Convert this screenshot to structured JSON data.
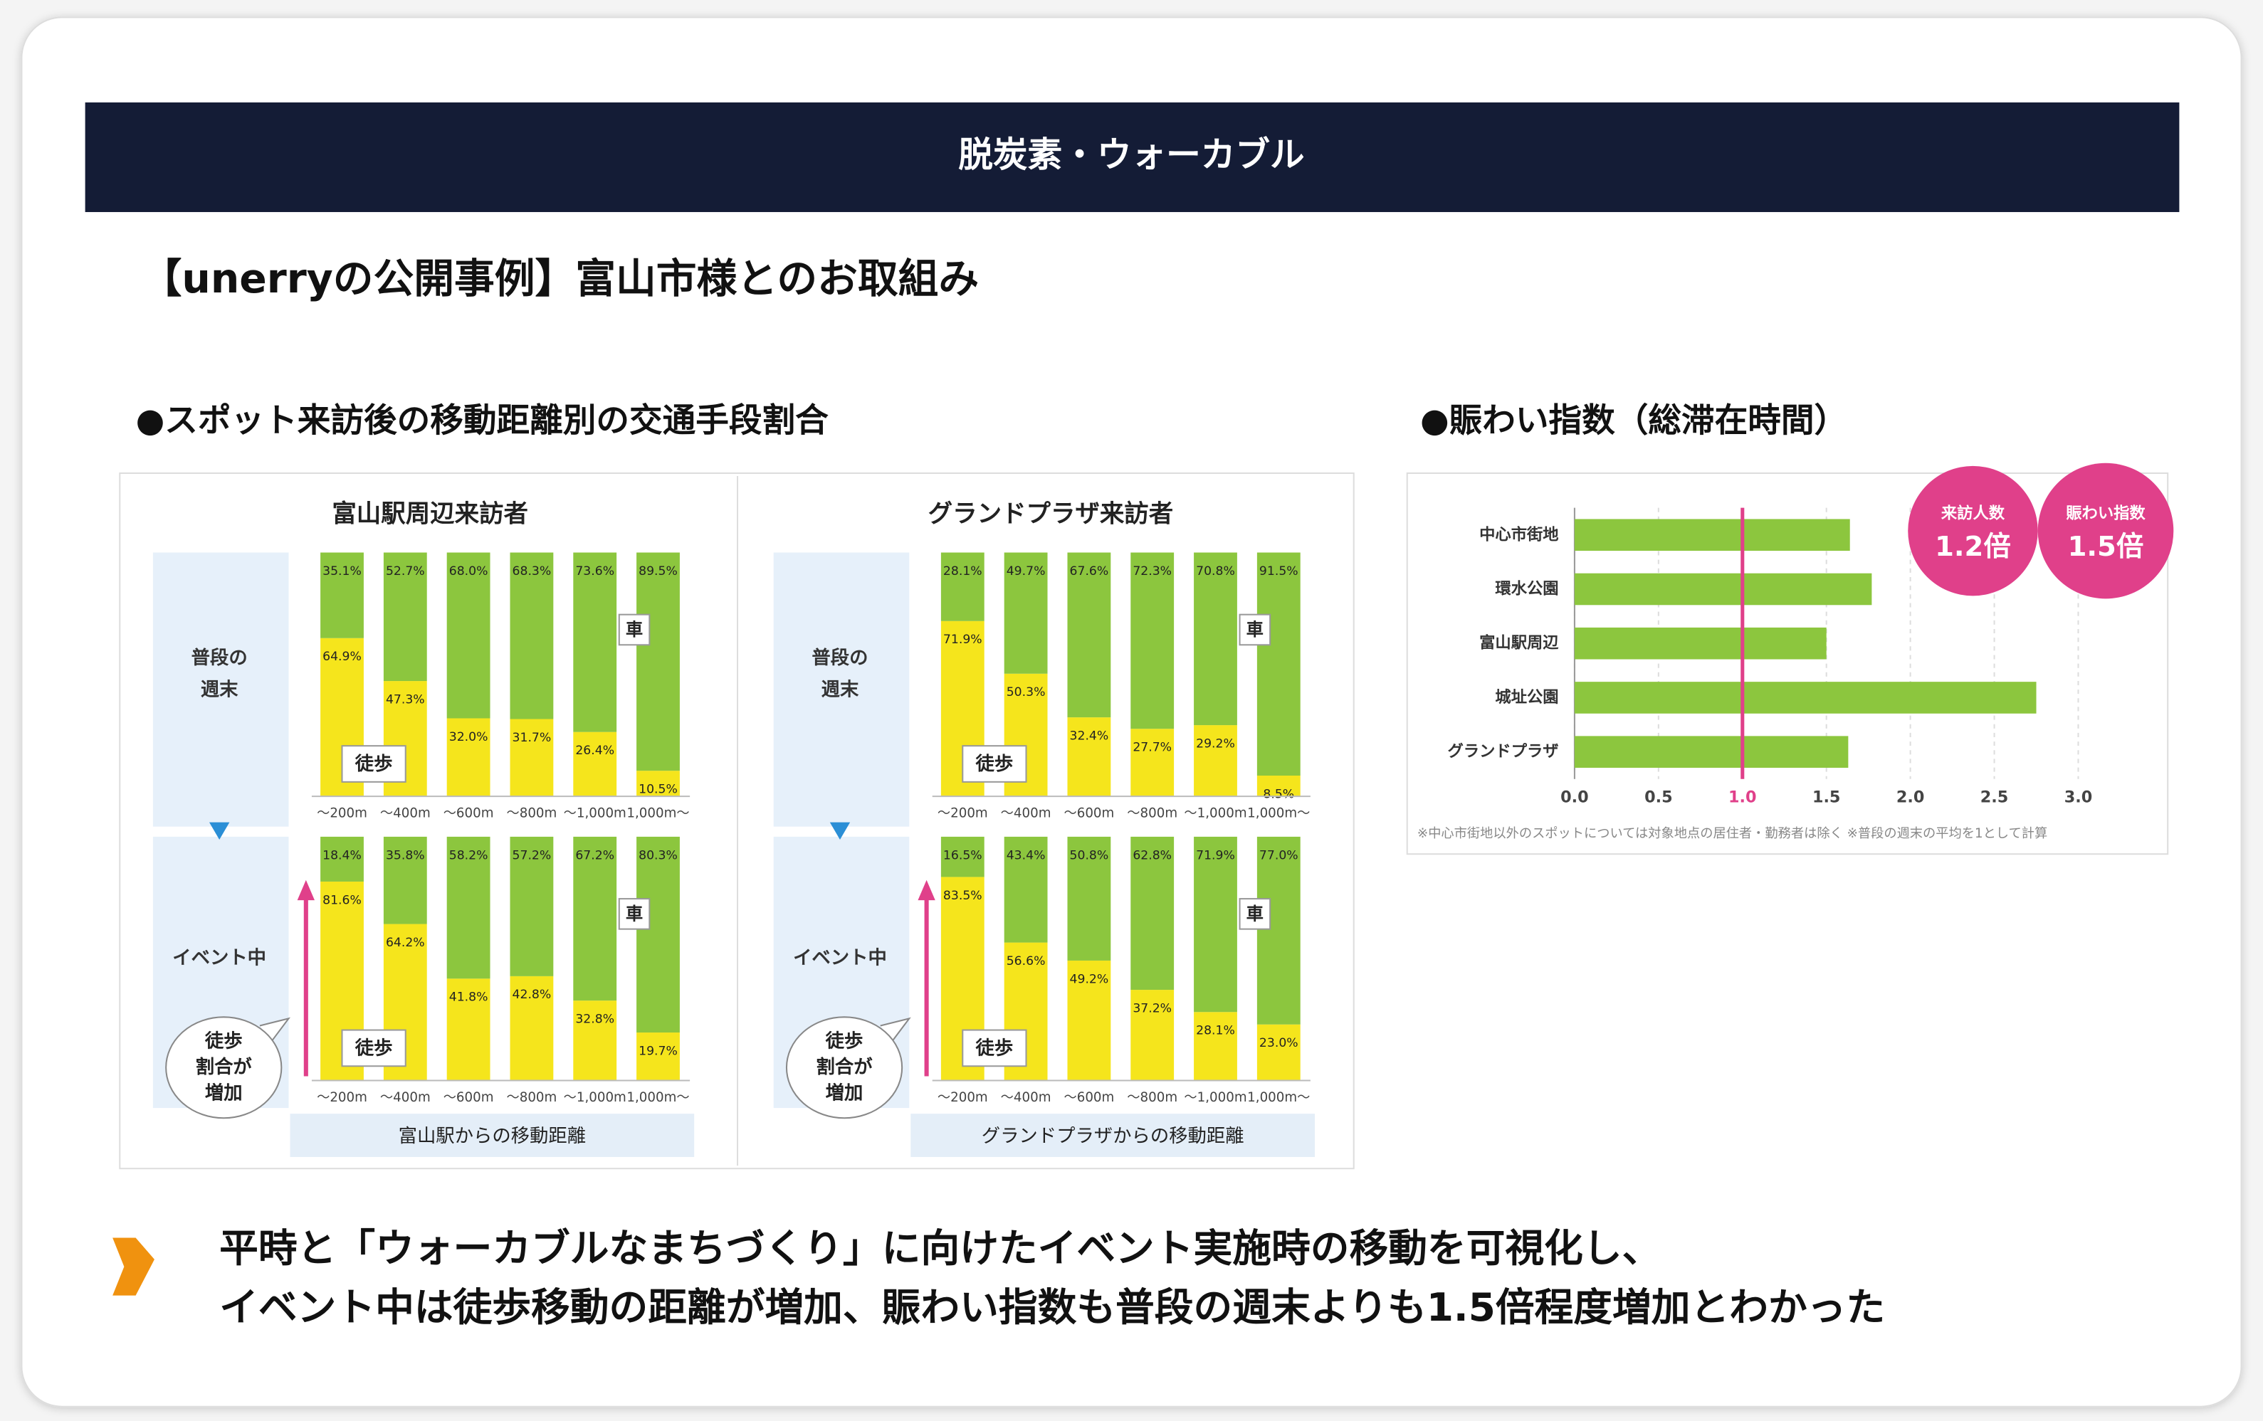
{
  "header": {
    "title": "脱炭素・ウォーカブル"
  },
  "subtitle": "【unerryの公開事例】富山市様とのお取組み",
  "sections": [
    "●スポット来訪後の移動距離別の交通手段割合",
    "●賑わい指数（総滞在時間）"
  ],
  "chart_data": [
    {
      "type": "stacked_bar",
      "title": "富山駅周辺来訪者",
      "xlabel": "富山駅からの移動距離",
      "categories": [
        "～200m",
        "～400m",
        "～600m",
        "～800m",
        "～1,000m",
        "1,000m～"
      ],
      "annotation": [
        "徒歩",
        "割合が",
        "増加"
      ],
      "rows": [
        {
          "label": [
            "普段の",
            "週末"
          ],
          "series": [
            {
              "name": "徒歩",
              "color": "#f5e51c",
              "values": [
                64.9,
                47.3,
                32.0,
                31.7,
                26.4,
                10.5
              ],
              "value_labels": [
                "64.9%",
                "47.3%",
                "32.0%",
                "31.7%",
                "26.4%",
                "10.5%"
              ]
            },
            {
              "name": "車",
              "color": "#8cc63e",
              "values": [
                35.1,
                52.7,
                68.0,
                68.3,
                73.6,
                89.5
              ],
              "value_labels": [
                "35.1%",
                "52.7%",
                "68.0%",
                "68.3%",
                "73.6%",
                "89.5%"
              ]
            }
          ]
        },
        {
          "label": [
            "イベント中"
          ],
          "series": [
            {
              "name": "徒歩",
              "color": "#f5e51c",
              "values": [
                81.6,
                64.2,
                41.8,
                42.8,
                32.8,
                19.7
              ],
              "value_labels": [
                "81.6%",
                "64.2%",
                "41.8%",
                "42.8%",
                "32.8%",
                "19.7%"
              ]
            },
            {
              "name": "車",
              "color": "#8cc63e",
              "values": [
                18.4,
                35.8,
                58.2,
                57.2,
                67.2,
                80.3
              ],
              "value_labels": [
                "18.4%",
                "35.8%",
                "58.2%",
                "57.2%",
                "67.2%",
                "80.3%"
              ]
            }
          ]
        }
      ]
    },
    {
      "type": "stacked_bar",
      "title": "グランドプラザ来訪者",
      "xlabel": "グランドプラザからの移動距離",
      "categories": [
        "～200m",
        "～400m",
        "～600m",
        "～800m",
        "～1,000m",
        "1,000m～"
      ],
      "annotation": [
        "徒歩",
        "割合が",
        "増加"
      ],
      "rows": [
        {
          "label": [
            "普段の",
            "週末"
          ],
          "series": [
            {
              "name": "徒歩",
              "color": "#f5e51c",
              "values": [
                71.9,
                50.3,
                32.4,
                27.7,
                29.2,
                8.5
              ],
              "value_labels": [
                "71.9%",
                "50.3%",
                "32.4%",
                "27.7%",
                "29.2%",
                "8.5%"
              ]
            },
            {
              "name": "車",
              "color": "#8cc63e",
              "values": [
                28.1,
                49.7,
                67.6,
                72.3,
                70.8,
                91.5
              ],
              "value_labels": [
                "28.1%",
                "49.7%",
                "67.6%",
                "72.3%",
                "70.8%",
                "91.5%"
              ]
            }
          ]
        },
        {
          "label": [
            "イベント中"
          ],
          "series": [
            {
              "name": "徒歩",
              "color": "#f5e51c",
              "values": [
                83.5,
                56.6,
                49.2,
                37.2,
                28.1,
                23.0
              ],
              "value_labels": [
                "83.5%",
                "56.6%",
                "49.2%",
                "37.2%",
                "28.1%",
                "23.0%"
              ]
            },
            {
              "name": "車",
              "color": "#8cc63e",
              "values": [
                16.5,
                43.4,
                50.8,
                62.8,
                71.9,
                77.0
              ],
              "value_labels": [
                "16.5%",
                "43.4%",
                "50.8%",
                "62.8%",
                "71.9%",
                "77.0%"
              ]
            }
          ]
        }
      ]
    },
    {
      "type": "barh",
      "categories": [
        "中心市街地",
        "環水公園",
        "富山駅周辺",
        "城址公園",
        "グランドプラザ"
      ],
      "values": [
        1.64,
        1.77,
        1.5,
        2.75,
        1.63
      ],
      "color": "#8cc63e",
      "xlim": [
        0,
        3
      ],
      "xticks": [
        {
          "value": 0,
          "label": "0.0"
        },
        0.5,
        {
          "value": 1,
          "label": "1.0"
        },
        1.5,
        {
          "value": 2,
          "label": "2.0"
        },
        2.5,
        {
          "value": 3,
          "label": "3.0"
        }
      ],
      "grid": true,
      "reference_line": {
        "value": 1,
        "color": "#e0408a"
      },
      "badges": [
        {
          "title": "来訪人数",
          "text": "1.2倍"
        },
        {
          "title": "賑わい指数",
          "text": "1.5倍"
        }
      ],
      "footnote": "※中心市街地以外のスポットについては対象地点の居住者・勤務者は除く ※普段の週末の平均を1として計算"
    }
  ],
  "conclusion": [
    "平時と「ウォーカブルなまちづくり」に向けたイベント実施時の移動を可視化し、",
    "イベント中は徒歩移動の距離が増加、賑わい指数も普段の週末よりも1.5倍程度増加とわかった"
  ]
}
